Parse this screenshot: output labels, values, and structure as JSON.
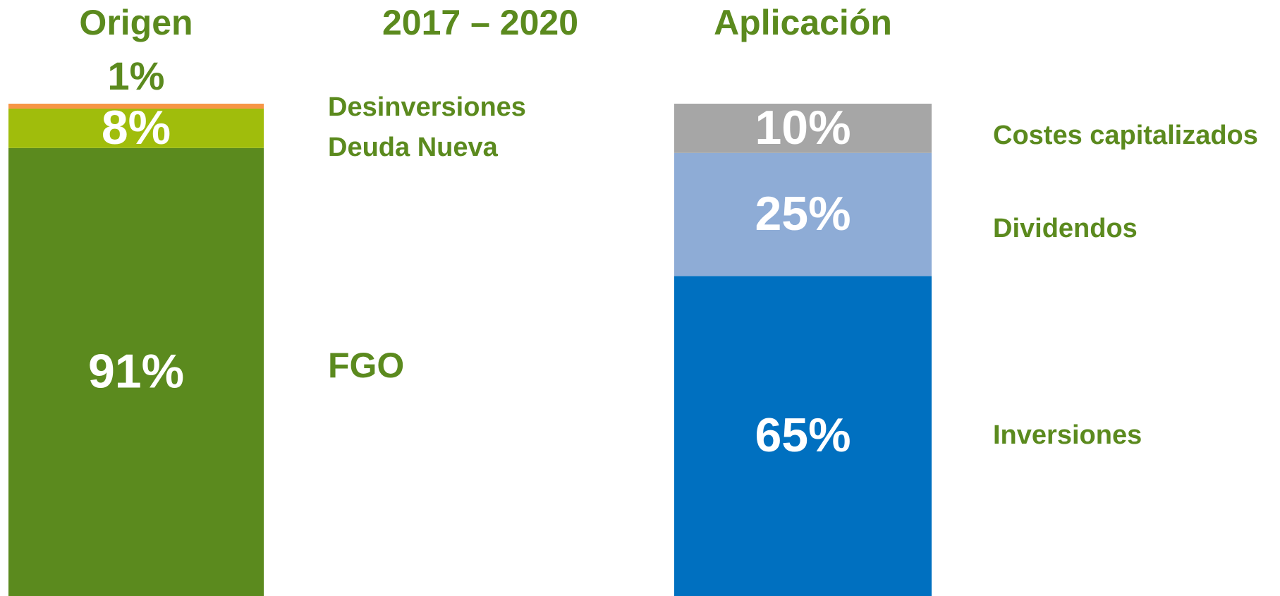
{
  "title": "2017 – 2020",
  "chart_data": [
    {
      "type": "bar",
      "stacked": true,
      "categories": [
        "Origen"
      ],
      "ylim": [
        0,
        100
      ],
      "series": [
        {
          "name": "FGO",
          "color": "#5b8a1e",
          "values": [
            91
          ],
          "value_labels": [
            "91%"
          ]
        },
        {
          "name": "Deuda Nueva",
          "color": "#a0bd0c",
          "values": [
            8
          ],
          "value_labels": [
            "8%"
          ]
        },
        {
          "name": "Desinversiones",
          "color": "#f79646",
          "values": [
            1
          ],
          "value_labels": [
            "1%"
          ]
        }
      ]
    },
    {
      "type": "bar",
      "stacked": true,
      "categories": [
        "Aplicación"
      ],
      "ylim": [
        0,
        100
      ],
      "series": [
        {
          "name": "Inversiones",
          "color": "#0070c0",
          "values": [
            65
          ],
          "value_labels": [
            "65%"
          ]
        },
        {
          "name": "Dividendos",
          "color": "#8eacd6",
          "values": [
            25
          ],
          "value_labels": [
            "25%"
          ]
        },
        {
          "name": "Costes capitalizados",
          "color": "#a6a6a6",
          "values": [
            10
          ],
          "value_labels": [
            "10%"
          ]
        }
      ]
    }
  ]
}
